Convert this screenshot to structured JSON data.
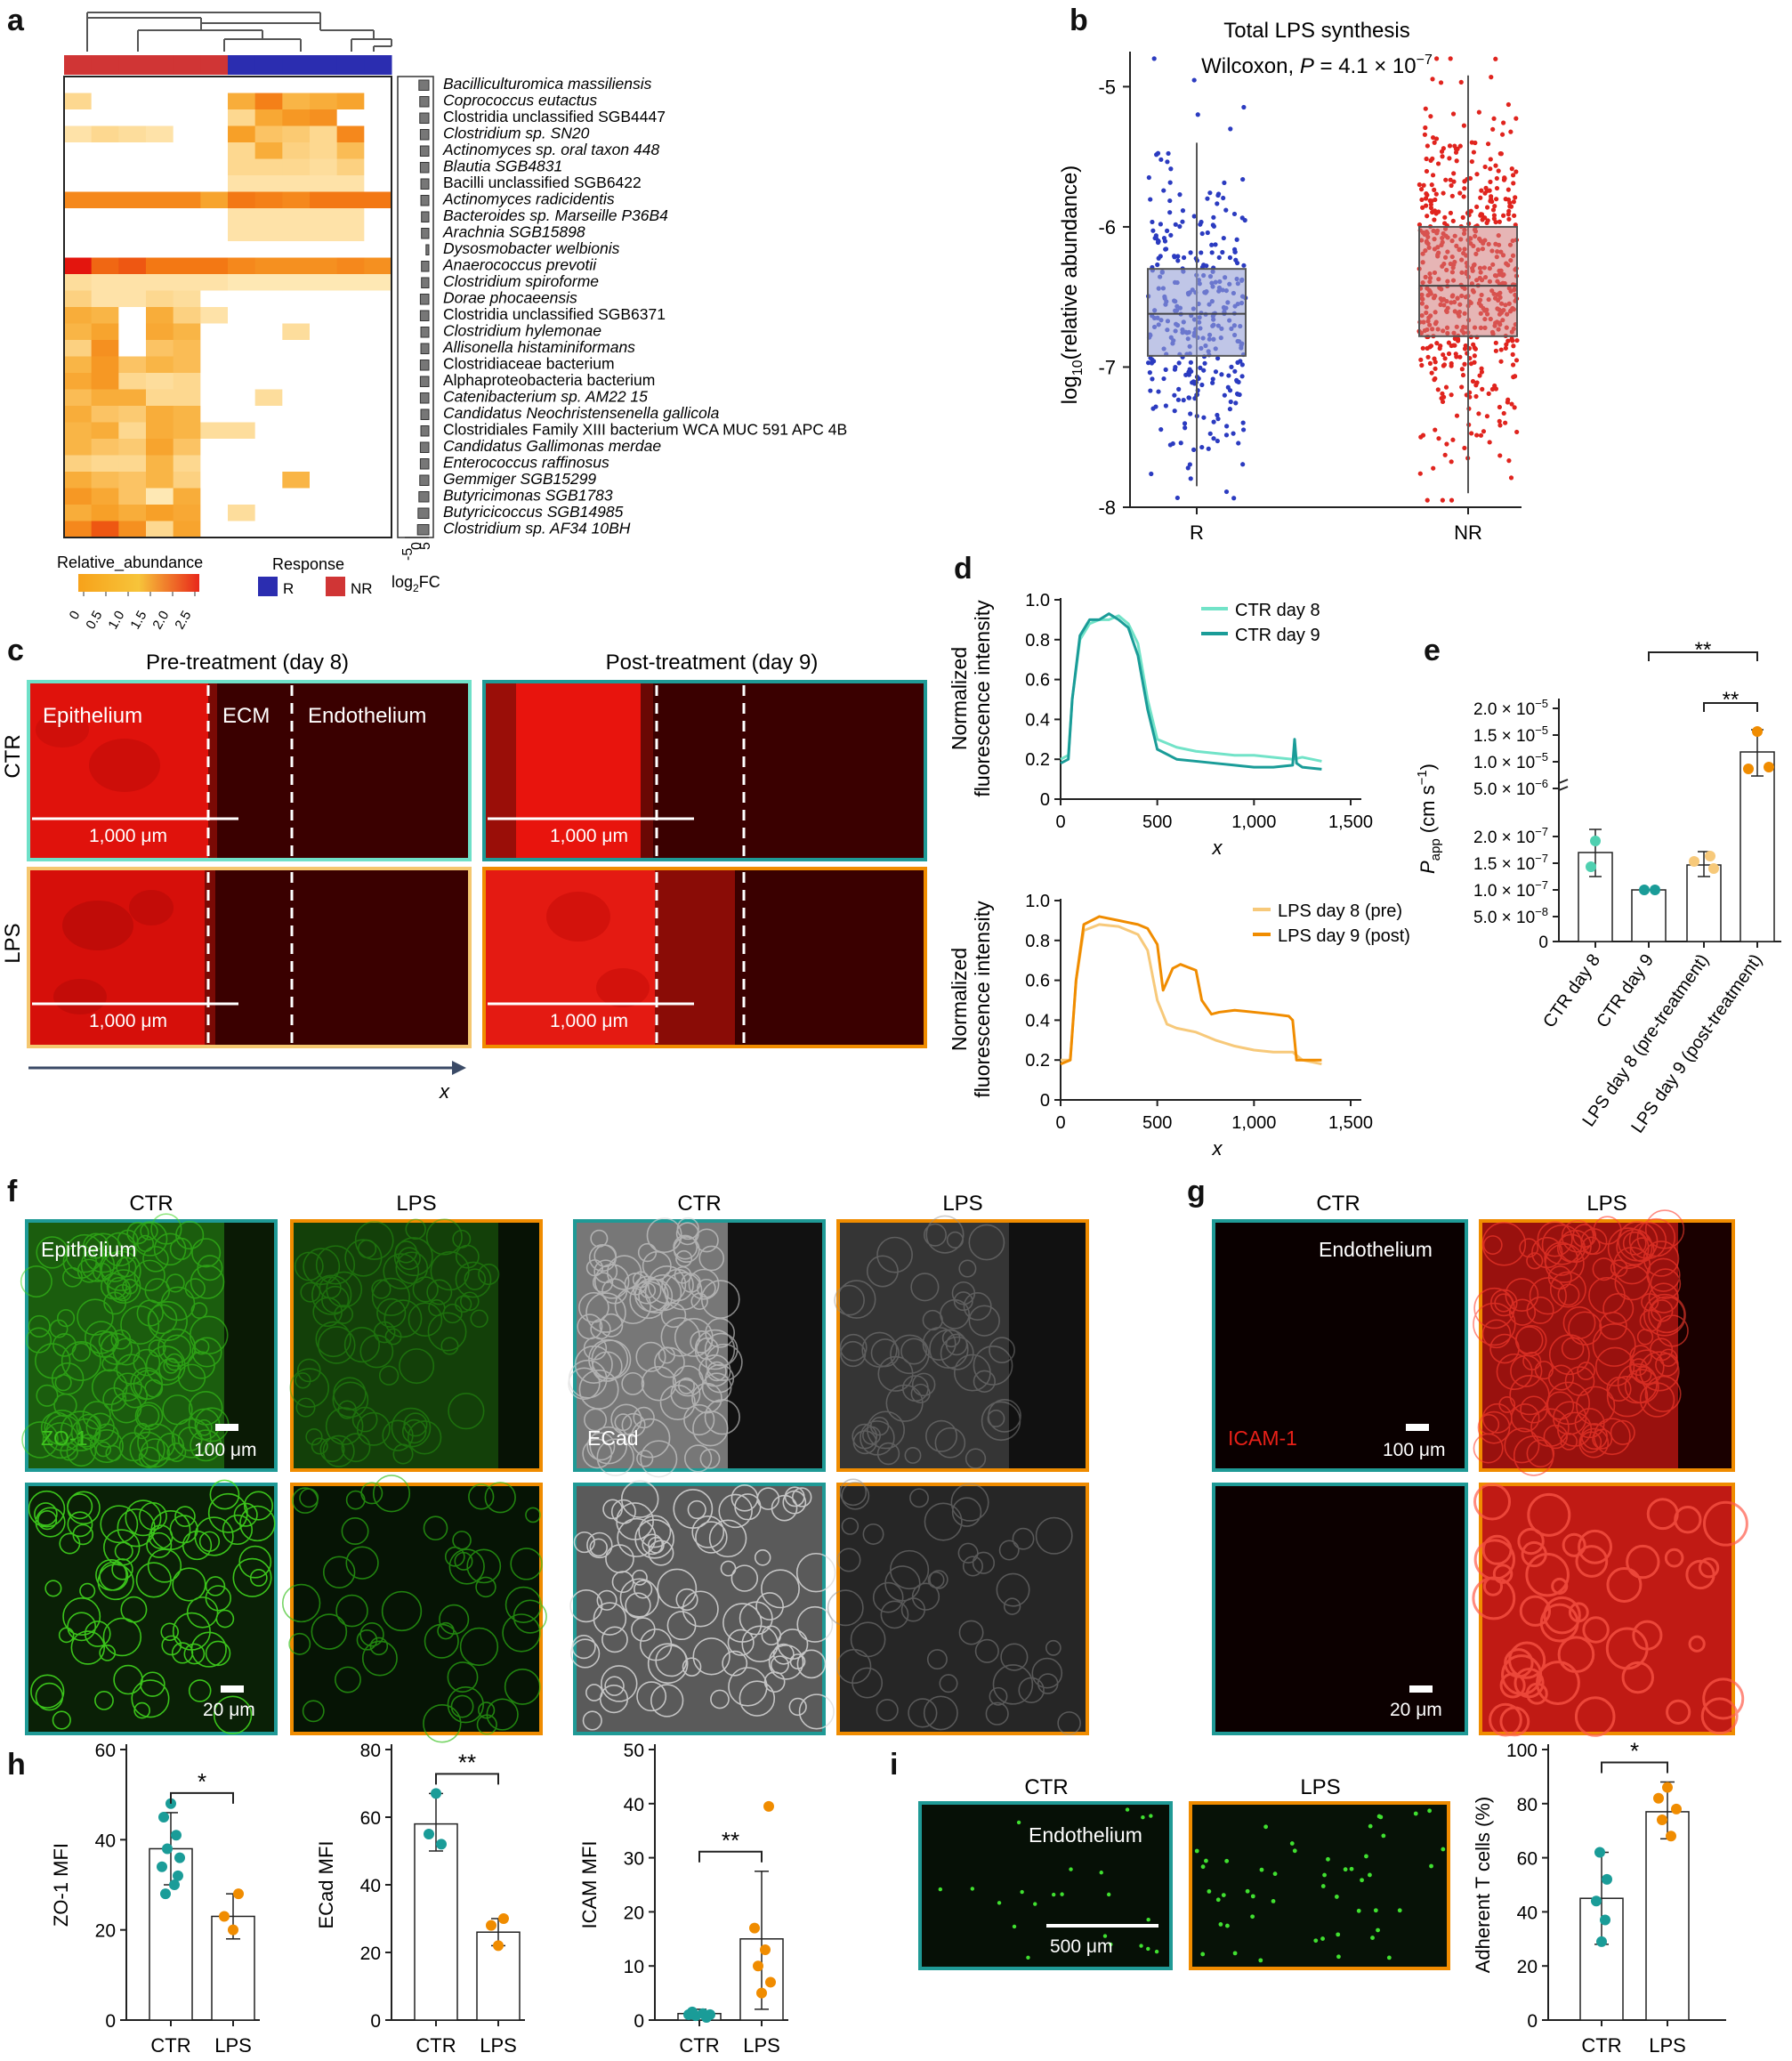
{
  "panels": {
    "a": "a",
    "b": "b",
    "c": "c",
    "d": "d",
    "e": "e",
    "f": "f",
    "g": "g",
    "h": "h",
    "i": "i"
  },
  "colors": {
    "teal": "#1a9c98",
    "teal_light": "#72e3c8",
    "orange": "#f08c00",
    "orange_light": "#f7c97a",
    "blue": "#2b2db0",
    "red": "#e0241e",
    "box_blue": "#b7bfe0",
    "box_red": "#e8b3b3"
  },
  "heatmap": {
    "species": [
      {
        "name": "Bacilliculturomica massiliensis",
        "italic": true
      },
      {
        "name": "Coprococcus eutactus",
        "italic": true
      },
      {
        "name": "Clostridia unclassified SGB4447",
        "italic": false
      },
      {
        "name": "Clostridium sp. SN20",
        "italic": true
      },
      {
        "name": "Actinomyces sp. oral taxon 448",
        "italic": true
      },
      {
        "name": "Blautia SGB4831",
        "italic": true
      },
      {
        "name": "Bacilli unclassified SGB6422",
        "italic": false
      },
      {
        "name": "Actinomyces radicidentis",
        "italic": true
      },
      {
        "name": "Bacteroides sp. Marseille P36B4",
        "italic": true
      },
      {
        "name": "Arachnia SGB15898",
        "italic": true
      },
      {
        "name": "Dysosmobacter welbionis",
        "italic": true
      },
      {
        "name": "Anaerococcus prevotii",
        "italic": true
      },
      {
        "name": "Clostridium spiroforme",
        "italic": true
      },
      {
        "name": "Dorae phocaeensis",
        "italic": true
      },
      {
        "name": "Clostridia unclassified SGB6371",
        "italic": false
      },
      {
        "name": "Clostridium hylemonae",
        "italic": true
      },
      {
        "name": "Allisonella histaminiformans",
        "italic": true
      },
      {
        "name": "Clostridiaceae bacterium",
        "italic": false
      },
      {
        "name": "Alphaproteobacteria bacterium",
        "italic": false
      },
      {
        "name": "Catenibacterium sp. AM22 15",
        "italic": true
      },
      {
        "name": "Candidatus Neochristensenella gallicola",
        "italic": true
      },
      {
        "name": "Clostridiales Family XIII bacterium WCA MUC 591 APC 4B",
        "italic": false
      },
      {
        "name": "Candidatus Gallimonas merdae",
        "italic": true
      },
      {
        "name": "Enterococcus raffinosus",
        "italic": true
      },
      {
        "name": "Gemmiger SGB15299",
        "italic": true
      },
      {
        "name": "Butyricimonas SGB1783",
        "italic": true
      },
      {
        "name": "Butyricicoccus SGB14985",
        "italic": true
      },
      {
        "name": "Clostridium sp. AF34 10BH",
        "italic": true
      }
    ],
    "groups": [
      "NR",
      "NR",
      "NR",
      "NR",
      "NR",
      "NR",
      "R",
      "R",
      "R",
      "R",
      "R",
      "R"
    ],
    "matrix": [
      [
        0,
        0,
        0,
        0,
        0,
        0,
        0,
        0,
        0,
        0,
        0,
        0
      ],
      [
        0.5,
        0,
        0,
        0,
        0,
        0,
        1.2,
        1.9,
        1.0,
        1.2,
        1.4,
        0
      ],
      [
        0,
        0,
        0,
        0,
        0,
        0,
        0.5,
        1.3,
        1.6,
        1.7,
        0,
        0
      ],
      [
        0.3,
        0.5,
        0.4,
        0.3,
        0,
        0,
        1.5,
        0.8,
        0.7,
        0.5,
        1.8,
        0
      ],
      [
        0,
        0,
        0,
        0,
        0,
        0,
        0.5,
        1.2,
        0.6,
        0.5,
        0.9,
        0
      ],
      [
        0,
        0,
        0,
        0,
        0,
        0,
        0.5,
        0.5,
        0.5,
        0.4,
        0.6,
        0
      ],
      [
        0,
        0,
        0,
        0,
        0,
        0,
        0.3,
        0.3,
        0.3,
        0.3,
        0.3,
        0
      ],
      [
        1.8,
        1.8,
        1.8,
        1.8,
        1.8,
        1.4,
        2.0,
        1.9,
        1.8,
        2.0,
        2.0,
        2.0
      ],
      [
        0,
        0,
        0,
        0,
        0,
        0,
        0.3,
        0.3,
        0.3,
        0.3,
        0.3,
        0
      ],
      [
        0,
        0,
        0,
        0,
        0,
        0,
        0.3,
        0.3,
        0.3,
        0.3,
        0.3,
        0
      ],
      [
        0,
        0,
        0,
        0,
        0,
        0,
        0,
        0,
        0,
        0,
        0,
        0
      ],
      [
        2.6,
        2.1,
        2.2,
        2.0,
        2.0,
        2.0,
        1.8,
        1.7,
        1.7,
        1.7,
        1.8,
        1.7
      ],
      [
        0.4,
        0.3,
        0.3,
        0.3,
        0.3,
        0.3,
        0.2,
        0.2,
        0.2,
        0.2,
        0.2,
        0.2
      ],
      [
        0.6,
        0.3,
        0.3,
        0.5,
        0.4,
        0,
        0,
        0,
        0,
        0,
        0,
        0
      ],
      [
        1.2,
        1.0,
        0,
        1.2,
        0.6,
        0.3,
        0,
        0,
        0,
        0,
        0,
        0
      ],
      [
        1.0,
        1.4,
        0,
        1.3,
        1.0,
        0,
        0,
        0,
        0.4,
        0,
        0,
        0
      ],
      [
        0.6,
        1.7,
        0,
        0.8,
        0.9,
        0,
        0,
        0,
        0,
        0,
        0,
        0
      ],
      [
        1.0,
        1.6,
        0.8,
        1.0,
        0.9,
        0,
        0,
        0,
        0,
        0,
        0,
        0
      ],
      [
        1.3,
        1.6,
        0.5,
        0.4,
        0.5,
        0,
        0,
        0,
        0,
        0,
        0,
        0
      ],
      [
        0.9,
        1.2,
        1.2,
        0.5,
        0.5,
        0,
        0,
        0.4,
        0,
        0,
        0,
        0
      ],
      [
        1.2,
        0.8,
        0.7,
        1.2,
        1.0,
        0,
        0,
        0,
        0,
        0,
        0,
        0
      ],
      [
        1.0,
        1.2,
        0.5,
        1.2,
        1.0,
        0.4,
        0.4,
        0,
        0,
        0,
        0,
        0
      ],
      [
        1.0,
        0.8,
        0.7,
        1.4,
        0.8,
        0,
        0,
        0,
        0,
        0,
        0,
        0
      ],
      [
        0.6,
        0.5,
        0.5,
        1.0,
        0.5,
        0,
        0,
        0,
        0,
        0,
        0,
        0
      ],
      [
        1.2,
        0.9,
        0.8,
        1.0,
        0.6,
        0,
        0,
        0,
        1.0,
        0,
        0,
        0
      ],
      [
        1.6,
        1.3,
        0.8,
        0.2,
        1.2,
        0,
        0,
        0,
        0,
        0,
        0,
        0
      ],
      [
        1.2,
        1.5,
        1.2,
        1.5,
        1.3,
        0,
        0.4,
        0,
        0,
        0,
        0,
        0
      ],
      [
        1.8,
        2.2,
        1.7,
        0.5,
        1.4,
        0,
        0,
        0,
        0,
        0,
        0,
        0
      ]
    ],
    "log2fc": [
      3.5,
      3.2,
      3.2,
      3.0,
      3.0,
      3.0,
      2.8,
      2.8,
      2.6,
      2.6,
      1.0,
      2.6,
      2.6,
      3.0,
      3.0,
      2.8,
      2.8,
      3.0,
      3.0,
      3.0,
      2.8,
      2.8,
      3.0,
      3.0,
      3.2,
      3.5,
      3.8,
      4.0
    ],
    "legend_title": "Relative_abundance",
    "legend_ticks": [
      "0",
      "0.5",
      "1.0",
      "1.5",
      "2.0",
      "2.5"
    ],
    "response_title": "Response",
    "response_R": "R",
    "response_NR": "NR",
    "fc_ticks": [
      "-5",
      "0",
      "5"
    ],
    "fc_label": "log",
    "fc_sub": "2",
    "fc_suffix": "FC"
  },
  "chart_b": {
    "title": "Total LPS synthesis",
    "stat_prefix": "Wilcoxon, ",
    "stat_p": "P",
    "stat_value": " = 4.1 × 10",
    "stat_exp": "−7",
    "ylabel_pre": "log",
    "ylabel_sub": "10",
    "ylabel_post": "(relative abundance)",
    "yticks": [
      "-5",
      "-6",
      "-7",
      "-8"
    ],
    "ylim": [
      -8,
      -4.75
    ],
    "categories": [
      "R",
      "NR"
    ],
    "box": [
      {
        "q1": -6.92,
        "median": -6.62,
        "q3": -6.3,
        "min": -7.85,
        "max": -5.4
      },
      {
        "q1": -6.78,
        "median": -6.42,
        "q3": -6.0,
        "min": -7.9,
        "max": -4.92
      }
    ]
  },
  "panel_c": {
    "col_pre": "Pre-treatment (day 8)",
    "col_post": "Post-treatment (day 9)",
    "row_ctr": "CTR",
    "row_lps": "LPS",
    "region_epi": "Epithelium",
    "region_ecm": "ECM",
    "region_endo": "Endothelium",
    "scale": "1,000 μm",
    "axis_x": "x"
  },
  "chart_d": {
    "ylabel1": "Normalized",
    "ylabel2": "fluorescence intensity",
    "xlabel": "x",
    "xticks": [
      "0",
      "500",
      "1,000",
      "1,500"
    ],
    "yticks": [
      "0",
      "0.2",
      "0.4",
      "0.6",
      "0.8",
      "1.0"
    ],
    "top_series": [
      {
        "name": "CTR day 8",
        "x": [
          0,
          40,
          60,
          100,
          150,
          200,
          250,
          300,
          350,
          400,
          450,
          500,
          600,
          700,
          800,
          900,
          1000,
          1100,
          1200,
          1250,
          1350
        ],
        "y": [
          0.2,
          0.22,
          0.5,
          0.8,
          0.88,
          0.9,
          0.9,
          0.92,
          0.88,
          0.78,
          0.5,
          0.3,
          0.26,
          0.24,
          0.23,
          0.22,
          0.22,
          0.21,
          0.2,
          0.21,
          0.19
        ]
      },
      {
        "name": "CTR day 9",
        "x": [
          0,
          40,
          60,
          100,
          150,
          200,
          250,
          300,
          350,
          400,
          450,
          500,
          600,
          700,
          800,
          900,
          1000,
          1100,
          1200,
          1210,
          1220,
          1250,
          1350
        ],
        "y": [
          0.18,
          0.2,
          0.5,
          0.82,
          0.9,
          0.9,
          0.93,
          0.9,
          0.86,
          0.72,
          0.45,
          0.25,
          0.2,
          0.19,
          0.18,
          0.17,
          0.16,
          0.16,
          0.17,
          0.3,
          0.18,
          0.16,
          0.15
        ]
      }
    ],
    "bottom_series": [
      {
        "name": "LPS day 8 (pre)",
        "x": [
          0,
          50,
          80,
          120,
          200,
          300,
          350,
          400,
          450,
          500,
          550,
          600,
          700,
          800,
          900,
          1000,
          1100,
          1200,
          1250,
          1350
        ],
        "y": [
          0.2,
          0.2,
          0.6,
          0.85,
          0.88,
          0.87,
          0.85,
          0.83,
          0.75,
          0.5,
          0.38,
          0.36,
          0.34,
          0.3,
          0.27,
          0.25,
          0.24,
          0.24,
          0.2,
          0.18
        ]
      },
      {
        "name": "LPS day 9 (post)",
        "x": [
          0,
          50,
          80,
          120,
          200,
          300,
          400,
          450,
          500,
          530,
          580,
          620,
          700,
          730,
          780,
          820,
          900,
          1000,
          1100,
          1180,
          1200,
          1220,
          1250,
          1350
        ],
        "y": [
          0.18,
          0.2,
          0.6,
          0.88,
          0.92,
          0.9,
          0.88,
          0.86,
          0.78,
          0.55,
          0.66,
          0.68,
          0.65,
          0.5,
          0.43,
          0.44,
          0.45,
          0.44,
          0.43,
          0.42,
          0.4,
          0.2,
          0.2,
          0.2
        ]
      }
    ]
  },
  "chart_e": {
    "ylabel": "P",
    "ylabel_sub": "app",
    "ylabel_unit": " (cm s",
    "ylabel_exp": "−1",
    "ylabel_end": ")",
    "upper_ticks": [
      {
        "label": "2.0 × 10",
        "exp": "−5"
      },
      {
        "label": "1.5 × 10",
        "exp": "−5"
      },
      {
        "label": "1.0 × 10",
        "exp": "−5"
      },
      {
        "label": "5.0 × 10",
        "exp": "−6"
      }
    ],
    "lower_ticks": [
      {
        "label": "2.0 × 10",
        "exp": "−7"
      },
      {
        "label": "1.5 × 10",
        "exp": "−7"
      },
      {
        "label": "1.0 × 10",
        "exp": "−7"
      },
      {
        "label": "5.0 × 10",
        "exp": "−8"
      },
      {
        "label": "0",
        "exp": ""
      }
    ],
    "categories": [
      "CTR day 8",
      "CTR day 9",
      "LPS day 8 (pre-treatment)",
      "LPS day 9 (post-treatment)"
    ],
    "sig1": "**",
    "sig2": "**"
  },
  "panel_f": {
    "ctr": "CTR",
    "lps": "LPS",
    "epi": "Epithelium",
    "zo1": "ZO-1",
    "ecad": "ECad",
    "s100": "100 μm",
    "s20": "20 μm"
  },
  "panel_g": {
    "ctr": "CTR",
    "lps": "LPS",
    "endo": "Endothelium",
    "icam": "ICAM-1",
    "s100": "100 μm",
    "s20": "20 μm"
  },
  "chart_h": [
    {
      "ylabel": "ZO-1 MFI",
      "yticks": [
        "0",
        "20",
        "40",
        "60"
      ],
      "ymax": 60,
      "categories": [
        "CTR",
        "LPS"
      ],
      "means": [
        38,
        23
      ],
      "sd": [
        [
          30,
          46
        ],
        [
          18,
          28
        ]
      ],
      "sig": "*",
      "points": [
        [
          32,
          45
        ],
        [
          38,
          38
        ],
        [
          30,
          33
        ],
        [
          40,
          48
        ],
        [
          36,
          44
        ],
        [
          28,
          40
        ],
        [
          42,
          36
        ],
        [
          46,
          33
        ]
      ],
      "points2": [
        [
          18,
          22
        ],
        [
          27,
          18
        ]
      ]
    },
    {
      "ylabel": "ECad MFI",
      "yticks": [
        "0",
        "20",
        "40",
        "60",
        "80"
      ],
      "ymax": 80,
      "categories": [
        "CTR",
        "LPS"
      ],
      "means": [
        58,
        26
      ],
      "sd": [
        [
          50,
          67
        ],
        [
          22,
          30
        ]
      ],
      "sig": "**"
    },
    {
      "ylabel": "ICAM MFI",
      "yticks": [
        "0",
        "10",
        "20",
        "30",
        "40",
        "50"
      ],
      "ymax": 50,
      "categories": [
        "CTR",
        "LPS"
      ],
      "means": [
        1.2,
        15
      ],
      "sd": [
        [
          0.5,
          2
        ],
        [
          2,
          27.5
        ]
      ],
      "sig": "**"
    }
  ],
  "panel_i": {
    "ctr": "CTR",
    "lps": "LPS",
    "endo": "Endothelium",
    "scale": "500 μm"
  },
  "chart_i": {
    "ylabel": "Adherent T cells (%)",
    "yticks": [
      "0",
      "20",
      "40",
      "60",
      "80",
      "100"
    ],
    "categories": [
      "CTR",
      "LPS"
    ],
    "means": [
      45,
      77
    ],
    "sd": [
      [
        28,
        62
      ],
      [
        67,
        88
      ]
    ],
    "sig": "*"
  }
}
